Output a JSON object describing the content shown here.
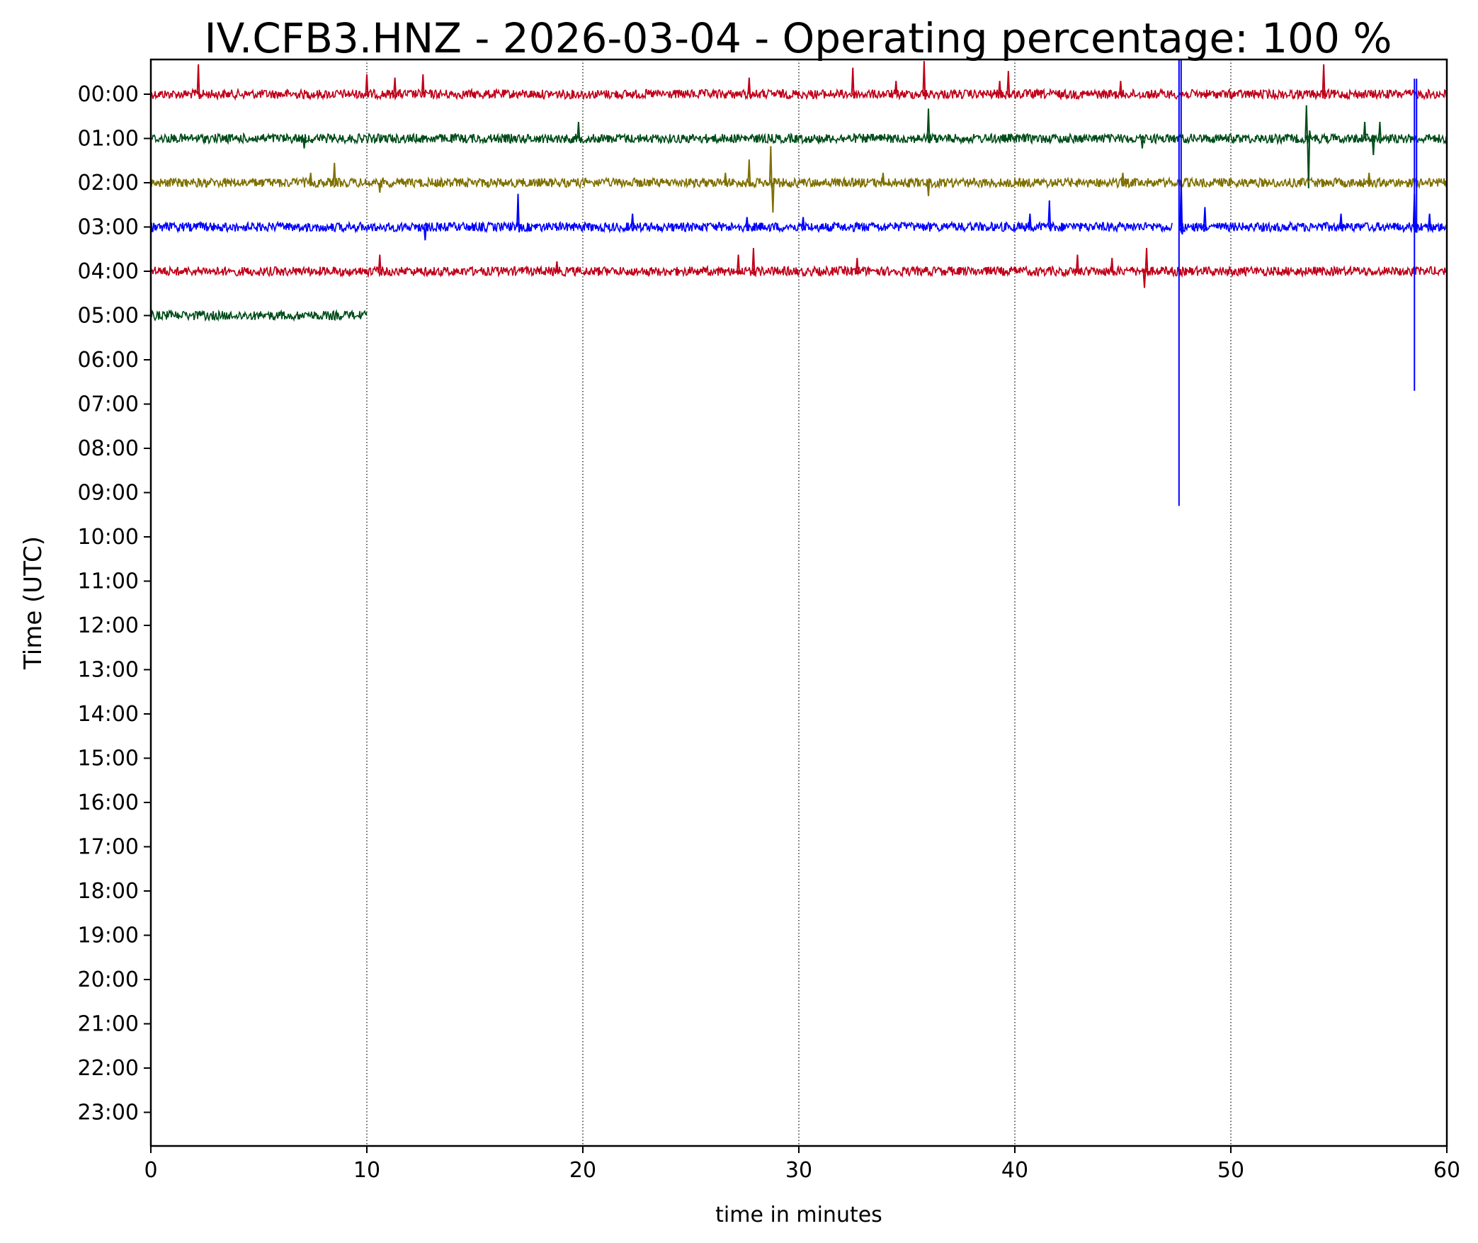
{
  "chart_data": {
    "type": "line",
    "title": "IV.CFB3.HNZ - 2026-03-04 - Operating percentage: 100 %",
    "xlabel": "time in minutes",
    "ylabel": "Time (UTC)",
    "xlim": [
      0,
      60
    ],
    "x_ticks": [
      "0",
      "10",
      "20",
      "30",
      "40",
      "50",
      "60"
    ],
    "y_ticks": [
      "00:00",
      "01:00",
      "02:00",
      "03:00",
      "04:00",
      "05:00",
      "06:00",
      "07:00",
      "08:00",
      "09:00",
      "10:00",
      "11:00",
      "12:00",
      "13:00",
      "14:00",
      "15:00",
      "16:00",
      "17:00",
      "18:00",
      "19:00",
      "20:00",
      "21:00",
      "22:00",
      "23:00"
    ],
    "grid": "vertical dotted lines at each x tick",
    "colors": [
      "#c0001a",
      "#004d1a",
      "#7f7000",
      "#0000ff"
    ],
    "series": [
      {
        "hour": "00:00",
        "color": "#c0001a",
        "x_start": 0,
        "x_end": 60,
        "spikes": [
          [
            2.2,
            0.9
          ],
          [
            10.0,
            0.6
          ],
          [
            11.3,
            0.5
          ],
          [
            12.6,
            0.6
          ],
          [
            27.7,
            0.5
          ],
          [
            32.5,
            0.8
          ],
          [
            34.5,
            0.4
          ],
          [
            35.8,
            1.0
          ],
          [
            39.3,
            0.4
          ],
          [
            39.7,
            0.7
          ],
          [
            44.9,
            0.4
          ],
          [
            54.3,
            0.9
          ]
        ]
      },
      {
        "hour": "01:00",
        "color": "#004d1a",
        "x_start": 0,
        "x_end": 60,
        "spikes": [
          [
            7.1,
            -0.3
          ],
          [
            19.8,
            0.5
          ],
          [
            36.0,
            0.9
          ],
          [
            45.9,
            -0.3
          ],
          [
            53.5,
            1.0
          ],
          [
            53.6,
            -1.5
          ],
          [
            56.2,
            0.5
          ],
          [
            56.6,
            -0.5
          ],
          [
            56.9,
            0.5
          ]
        ]
      },
      {
        "hour": "02:00",
        "color": "#7f7000",
        "x_start": 0,
        "x_end": 60,
        "spikes": [
          [
            7.4,
            0.3
          ],
          [
            8.5,
            0.6
          ],
          [
            10.6,
            -0.3
          ],
          [
            26.6,
            0.3
          ],
          [
            27.7,
            0.7
          ],
          [
            28.7,
            1.1
          ],
          [
            28.8,
            -0.9
          ],
          [
            33.9,
            0.3
          ],
          [
            36.0,
            -0.4
          ],
          [
            45.0,
            0.3
          ],
          [
            56.4,
            0.3
          ]
        ]
      },
      {
        "hour": "03:00",
        "color": "#0000ff",
        "x_start": 0,
        "x_end": 60,
        "gap": [
          47.3,
          47.6
        ],
        "spikes": [
          [
            12.7,
            -0.4
          ],
          [
            17.0,
            1.0
          ],
          [
            22.3,
            0.4
          ],
          [
            27.6,
            0.3
          ],
          [
            30.2,
            0.3
          ],
          [
            40.7,
            0.4
          ],
          [
            41.6,
            0.8
          ],
          [
            47.7,
            1.4
          ],
          [
            48.8,
            0.6
          ],
          [
            55.1,
            0.4
          ],
          [
            58.5,
            1.0
          ],
          [
            59.2,
            0.4
          ]
        ]
      },
      {
        "hour": "04:00",
        "color": "#c0001a",
        "x_start": 0,
        "x_end": 60,
        "spikes": [
          [
            10.6,
            0.5
          ],
          [
            18.8,
            0.3
          ],
          [
            27.2,
            0.5
          ],
          [
            27.9,
            0.7
          ],
          [
            32.7,
            0.4
          ],
          [
            42.9,
            0.5
          ],
          [
            44.5,
            0.4
          ],
          [
            46.1,
            0.7
          ],
          [
            46.0,
            -0.5
          ]
        ]
      },
      {
        "hour": "05:00",
        "color": "#004d1a",
        "x_start": 0,
        "x_end": 10,
        "spikes": []
      }
    ],
    "large_events": [
      {
        "x": 47.6,
        "color": "#0000ff",
        "from_hour": -0.8,
        "to_hour": 9.3
      },
      {
        "x": 58.5,
        "color": "#0000ff",
        "from_hour": -0.35,
        "to_hour": 6.7
      }
    ]
  }
}
